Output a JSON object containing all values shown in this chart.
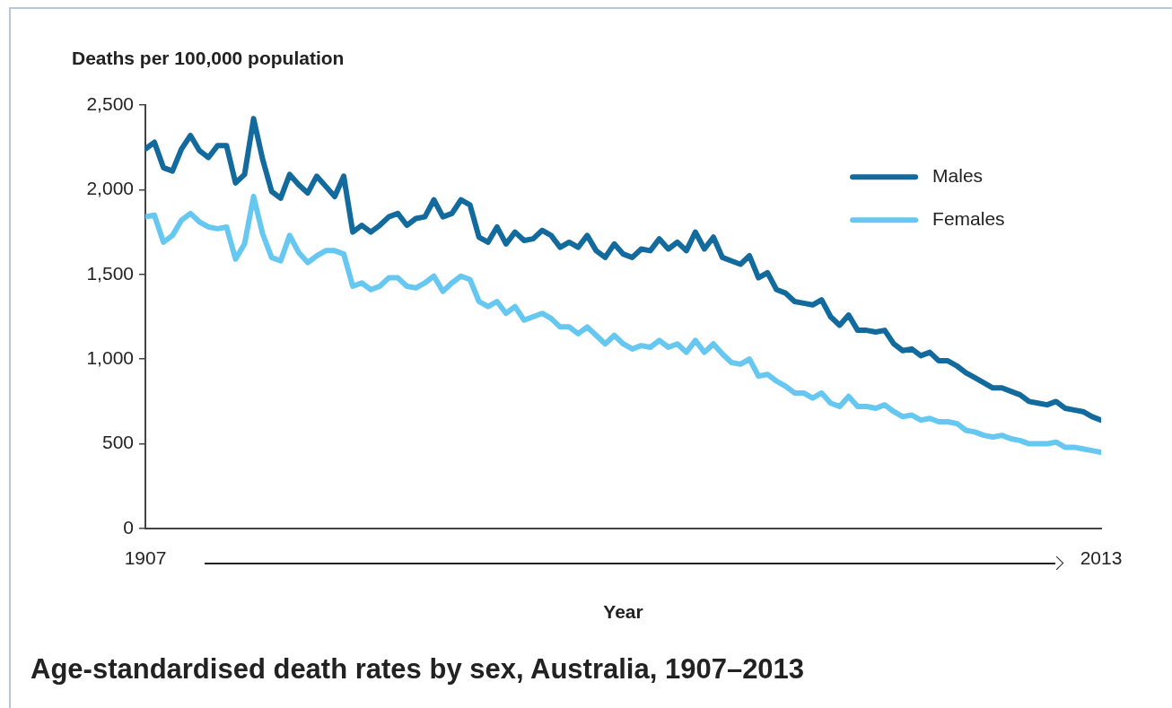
{
  "chart_data": {
    "type": "line",
    "title": "Age-standardised death rates by sex, Australia, 1907–2013",
    "xlabel": "Year",
    "ylabel": "Deaths per 100,000 population",
    "x": [
      1907,
      1908,
      1909,
      1910,
      1911,
      1912,
      1913,
      1914,
      1915,
      1916,
      1917,
      1918,
      1919,
      1920,
      1921,
      1922,
      1923,
      1924,
      1925,
      1926,
      1927,
      1928,
      1929,
      1930,
      1931,
      1932,
      1933,
      1934,
      1935,
      1936,
      1937,
      1938,
      1939,
      1940,
      1941,
      1942,
      1943,
      1944,
      1945,
      1946,
      1947,
      1948,
      1949,
      1950,
      1951,
      1952,
      1953,
      1954,
      1955,
      1956,
      1957,
      1958,
      1959,
      1960,
      1961,
      1962,
      1963,
      1964,
      1965,
      1966,
      1967,
      1968,
      1969,
      1970,
      1971,
      1972,
      1973,
      1974,
      1975,
      1976,
      1977,
      1978,
      1979,
      1980,
      1981,
      1982,
      1983,
      1984,
      1985,
      1986,
      1987,
      1988,
      1989,
      1990,
      1991,
      1992,
      1993,
      1994,
      1995,
      1996,
      1997,
      1998,
      1999,
      2000,
      2001,
      2002,
      2003,
      2004,
      2005,
      2006,
      2007,
      2008,
      2009,
      2010,
      2011,
      2012,
      2013
    ],
    "xlim": [
      1907,
      2013
    ],
    "xticks": [
      1907,
      2013
    ],
    "ylim": [
      0,
      2500
    ],
    "yticks": [
      {
        "value": 0,
        "label": "0"
      },
      {
        "value": 500,
        "label": "500"
      },
      {
        "value": 1000,
        "label": "1,000"
      },
      {
        "value": 1500,
        "label": "1,500"
      },
      {
        "value": 2000,
        "label": "2,000"
      },
      {
        "value": 2500,
        "label": "2,500"
      }
    ],
    "grid": false,
    "legend": "top right",
    "marker": "none",
    "line_style": "solid",
    "series": [
      {
        "name": "Males",
        "color": "#136b9d",
        "values": [
          2240,
          2280,
          2130,
          2110,
          2240,
          2320,
          2230,
          2190,
          2260,
          2260,
          2040,
          2090,
          2420,
          2180,
          1990,
          1950,
          2090,
          2030,
          1980,
          2080,
          2020,
          1960,
          2080,
          1750,
          1790,
          1750,
          1790,
          1840,
          1860,
          1790,
          1830,
          1840,
          1940,
          1840,
          1860,
          1940,
          1910,
          1720,
          1690,
          1780,
          1680,
          1750,
          1700,
          1710,
          1760,
          1730,
          1660,
          1690,
          1660,
          1730,
          1640,
          1600,
          1680,
          1620,
          1600,
          1650,
          1640,
          1710,
          1650,
          1690,
          1640,
          1750,
          1650,
          1720,
          1600,
          1580,
          1560,
          1610,
          1480,
          1510,
          1410,
          1390,
          1340,
          1330,
          1320,
          1350,
          1250,
          1200,
          1260,
          1170,
          1170,
          1160,
          1170,
          1090,
          1050,
          1060,
          1020,
          1040,
          990,
          990,
          960,
          920,
          890,
          860,
          830,
          830,
          810,
          790,
          750,
          740,
          730,
          750,
          710,
          700,
          690,
          660,
          640
        ]
      },
      {
        "name": "Females",
        "color": "#66c8f0",
        "values": [
          1840,
          1850,
          1690,
          1730,
          1820,
          1860,
          1810,
          1780,
          1770,
          1780,
          1590,
          1680,
          1960,
          1740,
          1600,
          1580,
          1730,
          1630,
          1570,
          1610,
          1640,
          1640,
          1620,
          1430,
          1450,
          1410,
          1430,
          1480,
          1480,
          1430,
          1420,
          1450,
          1490,
          1400,
          1450,
          1490,
          1470,
          1340,
          1310,
          1340,
          1270,
          1310,
          1230,
          1250,
          1270,
          1240,
          1190,
          1190,
          1150,
          1190,
          1140,
          1090,
          1140,
          1090,
          1060,
          1080,
          1070,
          1110,
          1070,
          1090,
          1040,
          1110,
          1040,
          1090,
          1030,
          980,
          970,
          1000,
          900,
          910,
          870,
          840,
          800,
          800,
          770,
          800,
          740,
          720,
          780,
          720,
          720,
          710,
          730,
          690,
          660,
          670,
          640,
          650,
          630,
          630,
          620,
          580,
          570,
          550,
          540,
          550,
          530,
          520,
          500,
          500,
          500,
          510,
          480,
          480,
          470,
          460,
          450
        ]
      }
    ]
  }
}
